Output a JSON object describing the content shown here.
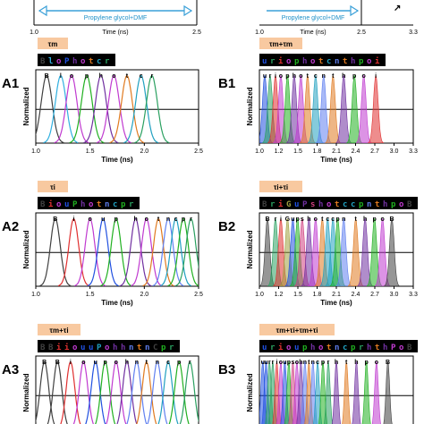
{
  "colors": {
    "cond_badge": "#f8c9a0",
    "seq_bg": "#000000",
    "arrow": "#3aa0d8",
    "fluors": {
      "B": "#404040",
      "i": "#e03030",
      "o": "#c03ad0",
      "u": "#2050e0",
      "p": "#20b020",
      "h": "#7030a0",
      "t": "#e07a20",
      "c": "#20a0c0",
      "n": "#6080f0",
      "r": "#2aa060",
      "l": "#30b0e0",
      "G": "#a0a040",
      "s": "#d04080",
      "e": "#80c020"
    }
  },
  "top": {
    "left_arrow_text": "Propylene glycol+DMF",
    "right_arrow_text": "Propylene glycol+DMF",
    "left_ticks": [
      "1.0",
      "2.5"
    ],
    "left_xlabel": "Time (ns)",
    "right_ticks": [
      "1.0",
      "2.5",
      "3.3"
    ],
    "right_xlabel": "Time (ns)"
  },
  "chart_data": [
    {
      "panel": "A1",
      "type": "line",
      "condition": "τm",
      "sequence": "BloPhotcr",
      "peak_labels": [
        "B",
        "l",
        "o",
        "p",
        "h",
        "o",
        "t",
        "c",
        "r"
      ],
      "peaks_ns": [
        1.1,
        1.23,
        1.33,
        1.47,
        1.6,
        1.72,
        1.84,
        1.97,
        2.07
      ],
      "widths_ns": 0.05,
      "filled": false,
      "xlim": [
        1.0,
        2.5
      ],
      "xticks": [
        "1.0",
        "1.5",
        "2.0",
        "2.5"
      ],
      "xlabel": "Time (ns)",
      "ylabel": "Normalized",
      "hline": 0.5
    },
    {
      "panel": "B1",
      "type": "area",
      "condition": "τm+τm",
      "sequence": "uriophotcnthpoi",
      "peak_labels": [
        "u",
        "r",
        "i",
        "o",
        "p",
        "h",
        "o",
        "t",
        "c",
        "n",
        "t",
        "h",
        "p",
        "o",
        "i"
      ],
      "peaks_ns": [
        1.08,
        1.16,
        1.24,
        1.32,
        1.42,
        1.52,
        1.62,
        1.72,
        1.84,
        1.96,
        2.1,
        2.26,
        2.42,
        2.56,
        2.74
      ],
      "widths_ns": 0.035,
      "filled": true,
      "xlim": [
        1.0,
        3.3
      ],
      "xticks": [
        "1.0",
        "1.2",
        "1.5",
        "1.8",
        "2.1",
        "2.4",
        "2.7",
        "3.0",
        "3.3"
      ],
      "xlabel": "Time (ns)",
      "ylabel": "Normalized",
      "hline": 0.5
    },
    {
      "panel": "A2",
      "type": "line",
      "condition": "τi",
      "sequence": "BiouPhotncpr",
      "peak_labels": [
        "B",
        "i",
        "o",
        "u",
        "p",
        "h",
        "o",
        "t",
        "n",
        "c",
        "p",
        "r"
      ],
      "peaks_ns": [
        1.18,
        1.35,
        1.5,
        1.62,
        1.74,
        1.92,
        2.02,
        2.13,
        2.22,
        2.29,
        2.36,
        2.43
      ],
      "widths_ns": 0.045,
      "filled": false,
      "xlim": [
        1.0,
        2.5
      ],
      "xticks": [
        "1.0",
        "1.5",
        "2.0",
        "2.5"
      ],
      "xlabel": "Time (ns)",
      "ylabel": "Normalized",
      "hline": 0.5
    },
    {
      "panel": "B2",
      "type": "area",
      "condition": "τi+τi",
      "sequence": "BriGuPshotccpnthpoB",
      "peak_labels": [
        "B",
        "r",
        "i",
        "G",
        "u",
        "p",
        "s",
        "h",
        "o",
        "t",
        "c",
        "c",
        "p",
        "n",
        "t",
        "h",
        "p",
        "o",
        "B"
      ],
      "peaks_ns": [
        1.12,
        1.24,
        1.32,
        1.42,
        1.5,
        1.57,
        1.64,
        1.74,
        1.84,
        1.94,
        2.02,
        2.1,
        2.17,
        2.26,
        2.44,
        2.58,
        2.72,
        2.84,
        2.98
      ],
      "widths_ns": 0.035,
      "filled": true,
      "xlim": [
        1.0,
        3.3
      ],
      "xticks": [
        "1.0",
        "1.2",
        "1.5",
        "1.8",
        "2.1",
        "2.4",
        "2.7",
        "3.0",
        "3.3"
      ],
      "xlabel": "Time (ns)",
      "ylabel": "Normalized",
      "hline": 0.5
    },
    {
      "panel": "A3",
      "type": "line",
      "condition": "τm+τi",
      "sequence": "BBiiouuPohhntnCpr",
      "peak_labels": [
        "B",
        "B",
        "i",
        "o",
        "u",
        "p",
        "o",
        "h",
        "n",
        "t",
        "n",
        "c",
        "p",
        "r"
      ],
      "peaks_ns": [
        1.08,
        1.2,
        1.32,
        1.44,
        1.55,
        1.64,
        1.74,
        1.84,
        1.93,
        2.02,
        2.12,
        2.22,
        2.32,
        2.42
      ],
      "widths_ns": 0.04,
      "filled": false,
      "xlim": [
        1.0,
        2.5
      ],
      "xticks": [],
      "xlabel": "",
      "ylabel": "Normalized",
      "hline": 0.5
    },
    {
      "panel": "B3",
      "type": "area",
      "condition": "τm+τi+τm+τi",
      "sequence": "uriouphotncprhthPoB",
      "peak_labels": [
        "u",
        "u",
        "r",
        "r",
        "i",
        "o",
        "u",
        "p",
        "s",
        "o",
        "h",
        "n",
        "t",
        "n",
        "c",
        "p",
        "r",
        "h",
        "t",
        "h",
        "p",
        "o",
        "B"
      ],
      "peaks_ns": [
        1.05,
        1.1,
        1.15,
        1.2,
        1.26,
        1.32,
        1.38,
        1.44,
        1.5,
        1.56,
        1.62,
        1.68,
        1.74,
        1.8,
        1.87,
        1.95,
        2.03,
        2.15,
        2.3,
        2.45,
        2.6,
        2.75,
        2.92
      ],
      "widths_ns": 0.028,
      "filled": true,
      "xlim": [
        1.0,
        3.3
      ],
      "xticks": [],
      "xlabel": "",
      "ylabel": "Normalized",
      "hline": 0.5
    }
  ]
}
